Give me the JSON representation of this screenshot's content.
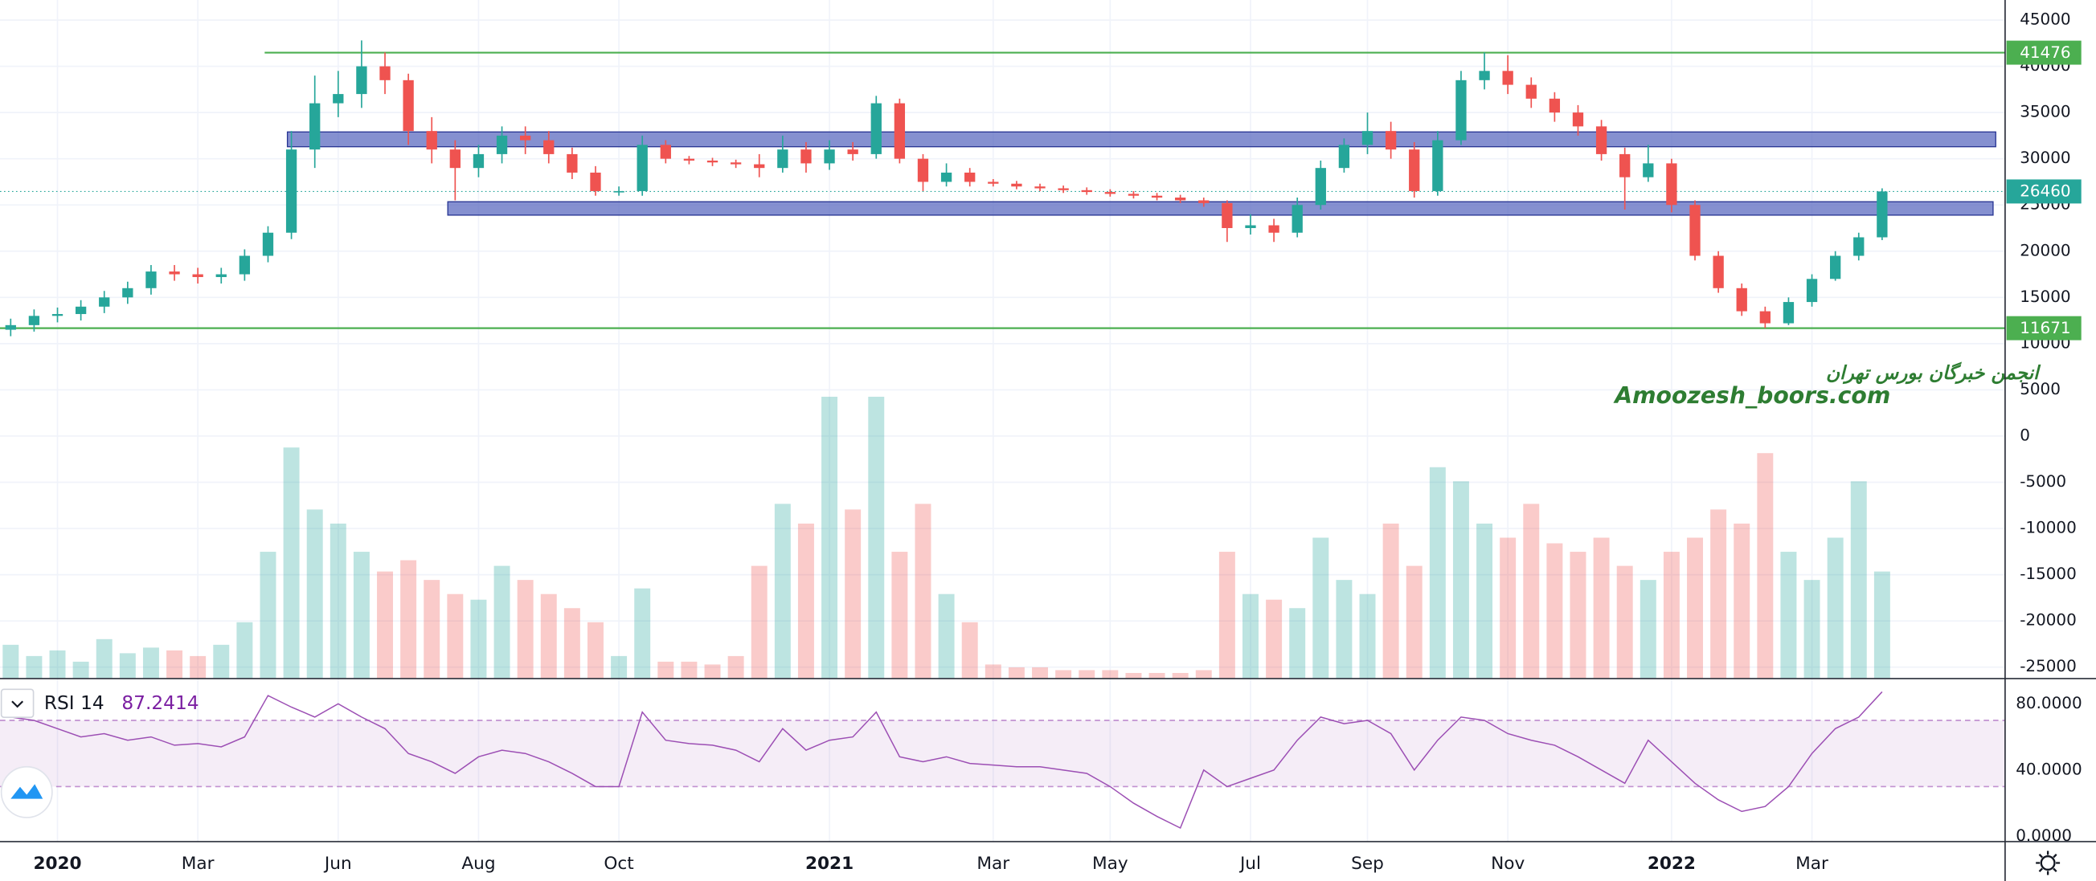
{
  "watermark": {
    "line1": "انجمن خبرگان بورس تهران",
    "line2": "Amoozesh_boors.com"
  },
  "chart_data": [
    {
      "type": "candlestick",
      "categories": [
        null,
        null,
        "2020",
        null,
        null,
        null,
        null,
        null,
        "Mar",
        null,
        null,
        null,
        null,
        null,
        "Jun",
        null,
        null,
        null,
        null,
        null,
        "Aug",
        null,
        null,
        null,
        null,
        null,
        "Oct",
        null,
        null,
        null,
        null,
        null,
        null,
        null,
        null,
        "2021",
        null,
        null,
        null,
        null,
        null,
        null,
        "Mar",
        null,
        null,
        null,
        null,
        "May",
        null,
        null,
        null,
        null,
        null,
        "Jul",
        null,
        null,
        null,
        null,
        "Sep",
        null,
        null,
        null,
        null,
        null,
        "Nov",
        null,
        null,
        null,
        null,
        null,
        null,
        "2022",
        null,
        null,
        null,
        null,
        null,
        "Mar",
        null,
        null,
        null
      ],
      "open": [
        11500,
        12000,
        13000,
        13200,
        14000,
        15000,
        16000,
        17800,
        17500,
        17200,
        17500,
        19500,
        22000,
        31000,
        36000,
        37000,
        40000,
        38500,
        33000,
        31000,
        29000,
        30500,
        32500,
        32000,
        30500,
        28500,
        26500,
        26500,
        31500,
        30000,
        29800,
        29600,
        29400,
        29000,
        31000,
        29500,
        31000,
        30500,
        36000,
        30000,
        27500,
        28500,
        27500,
        27300,
        27000,
        26800,
        26600,
        26400,
        26200,
        26000,
        25800,
        25500,
        25200,
        22500,
        22800,
        22000,
        25000,
        29000,
        31500,
        33000,
        31000,
        26500,
        32000,
        38500,
        39500,
        38000,
        36500,
        35000,
        33500,
        30500,
        28000,
        29500,
        25000,
        19500,
        16000,
        13500,
        12200,
        14500,
        17000,
        19500,
        21500
      ],
      "high": [
        12700,
        13700,
        13900,
        14700,
        15700,
        16700,
        18500,
        18500,
        18200,
        18200,
        20200,
        22700,
        33000,
        39000,
        39500,
        42800,
        41500,
        39200,
        34500,
        32000,
        31500,
        33500,
        33500,
        33000,
        31200,
        29200,
        27000,
        32500,
        32000,
        30300,
        30100,
        29900,
        30500,
        32500,
        31800,
        32000,
        31800,
        36800,
        36500,
        30500,
        29500,
        29000,
        27800,
        27600,
        27300,
        27100,
        26900,
        26700,
        26500,
        26300,
        26100,
        25800,
        25500,
        24000,
        23500,
        25800,
        29800,
        32200,
        35000,
        34000,
        31800,
        33000,
        39500,
        41500,
        41200,
        38800,
        37200,
        35800,
        34200,
        31200,
        31500,
        30000,
        25500,
        20000,
        16500,
        14000,
        15000,
        17500,
        20000,
        22000,
        26800
      ],
      "low": [
        10800,
        11300,
        12300,
        12500,
        13300,
        14300,
        15300,
        16800,
        16500,
        16500,
        16800,
        18800,
        21300,
        29000,
        34500,
        35500,
        37000,
        31500,
        29500,
        25500,
        28000,
        29500,
        30500,
        29500,
        27800,
        26000,
        26000,
        26000,
        29500,
        29400,
        29200,
        29000,
        28000,
        28500,
        28500,
        28800,
        29800,
        30000,
        29500,
        26500,
        27000,
        27000,
        27000,
        26700,
        26500,
        26300,
        26100,
        25900,
        25700,
        25500,
        25200,
        24800,
        21000,
        21800,
        21000,
        21500,
        24500,
        28500,
        30500,
        30000,
        25800,
        26000,
        31500,
        37500,
        37000,
        35500,
        34000,
        32500,
        29800,
        24500,
        27500,
        24200,
        19000,
        15500,
        13000,
        11671,
        12000,
        14000,
        16800,
        19000,
        21200
      ],
      "close": [
        12000,
        13000,
        13200,
        14000,
        15000,
        16000,
        17800,
        17500,
        17200,
        17500,
        19500,
        22000,
        31000,
        36000,
        37000,
        40000,
        38500,
        33000,
        31000,
        29000,
        30500,
        32500,
        32000,
        30500,
        28500,
        26500,
        26500,
        31500,
        30000,
        29800,
        29600,
        29400,
        29000,
        31000,
        29500,
        31000,
        30500,
        36000,
        30000,
        27500,
        28500,
        27500,
        27300,
        27000,
        26800,
        26600,
        26400,
        26200,
        26000,
        25800,
        25500,
        25200,
        22500,
        22800,
        22000,
        25000,
        29000,
        31500,
        33000,
        31000,
        26500,
        32000,
        38500,
        39500,
        38000,
        36500,
        35000,
        33500,
        30500,
        28000,
        29500,
        25000,
        19500,
        16000,
        13500,
        12200,
        14500,
        17000,
        19500,
        21500,
        26460
      ],
      "volume": [
        12,
        8,
        10,
        6,
        14,
        9,
        11,
        10,
        8,
        12,
        20,
        45,
        82,
        60,
        55,
        45,
        38,
        42,
        35,
        30,
        28,
        40,
        35,
        30,
        25,
        20,
        8,
        32,
        6,
        6,
        5,
        8,
        40,
        62,
        55,
        100,
        60,
        100,
        45,
        62,
        30,
        20,
        5,
        4,
        4,
        3,
        3,
        3,
        2,
        2,
        2,
        3,
        45,
        30,
        28,
        25,
        50,
        35,
        30,
        55,
        40,
        75,
        70,
        55,
        50,
        62,
        48,
        45,
        50,
        40,
        35,
        45,
        50,
        60,
        55,
        80,
        45,
        35,
        50,
        70,
        38
      ],
      "up_color": "#26a69a",
      "down_color": "#ef5350",
      "ylim": [
        -26240,
        47170
      ],
      "yticks": [
        45000,
        40000,
        35000,
        30000,
        25000,
        20000,
        15000,
        10000,
        5000,
        0,
        -5000,
        -10000,
        -15000,
        -20000,
        -25000
      ],
      "grid": true,
      "levels": [
        {
          "value": 41476,
          "color": "#4caf50"
        },
        {
          "value": 11671,
          "color": "#4caf50"
        }
      ],
      "zones": [
        {
          "from": 31300,
          "to": 32900,
          "color": "#5c6bc0"
        },
        {
          "from": 23900,
          "to": 25350,
          "color": "#5c6bc0"
        }
      ]
    },
    {
      "type": "line",
      "name": "RSI 14",
      "color": "#9c4fb4",
      "values": [
        72,
        70,
        65,
        60,
        62,
        58,
        60,
        55,
        56,
        54,
        60,
        85,
        78,
        72,
        80,
        72,
        65,
        50,
        45,
        38,
        48,
        52,
        50,
        45,
        38,
        30,
        30,
        75,
        58,
        56,
        55,
        52,
        45,
        65,
        52,
        58,
        60,
        75,
        48,
        45,
        48,
        44,
        43,
        42,
        42,
        40,
        38,
        30,
        20,
        12,
        5,
        40,
        30,
        35,
        40,
        58,
        72,
        68,
        70,
        62,
        40,
        58,
        72,
        70,
        62,
        58,
        55,
        48,
        40,
        32,
        58,
        45,
        32,
        22,
        15,
        18,
        30,
        50,
        65,
        72,
        87.2414
      ],
      "ylim": [
        -3.2,
        92
      ],
      "yticks": [
        {
          "value": 80,
          "label": "80.0000"
        },
        {
          "value": 40,
          "label": "40.0000"
        },
        {
          "value": 0,
          "label": "0.0000"
        }
      ],
      "band": [
        30,
        70
      ]
    }
  ]
}
